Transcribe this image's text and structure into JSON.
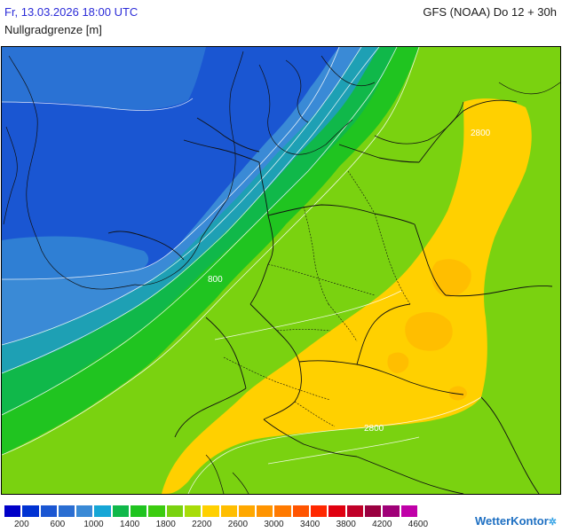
{
  "header": {
    "valid_time": "Fr, 13.03.2026 18:00 UTC",
    "model_run": "GFS (NOAA) Do 12 + 30h",
    "parameter": "Nullgradgrenze [m]"
  },
  "map": {
    "contour_labels": [
      "800",
      "2800",
      "2800"
    ]
  },
  "legend": {
    "colors": [
      "#0000c8",
      "#0032d2",
      "#1a56d2",
      "#2a6ed2",
      "#3a8ad6",
      "#16a6d6",
      "#10b84a",
      "#20c420",
      "#3ccc10",
      "#7ad210",
      "#a8dc08",
      "#ffd000",
      "#ffbe00",
      "#ffa800",
      "#ff9400",
      "#ff7a00",
      "#ff5400",
      "#ff2800",
      "#e00010",
      "#c00028",
      "#9a0040",
      "#a00078",
      "#c000a8"
    ],
    "labels": [
      "200",
      "600",
      "1000",
      "1400",
      "1800",
      "2200",
      "2600",
      "3000",
      "3400",
      "3800",
      "4200",
      "4600"
    ]
  },
  "brand": {
    "name": "WetterKontor"
  }
}
